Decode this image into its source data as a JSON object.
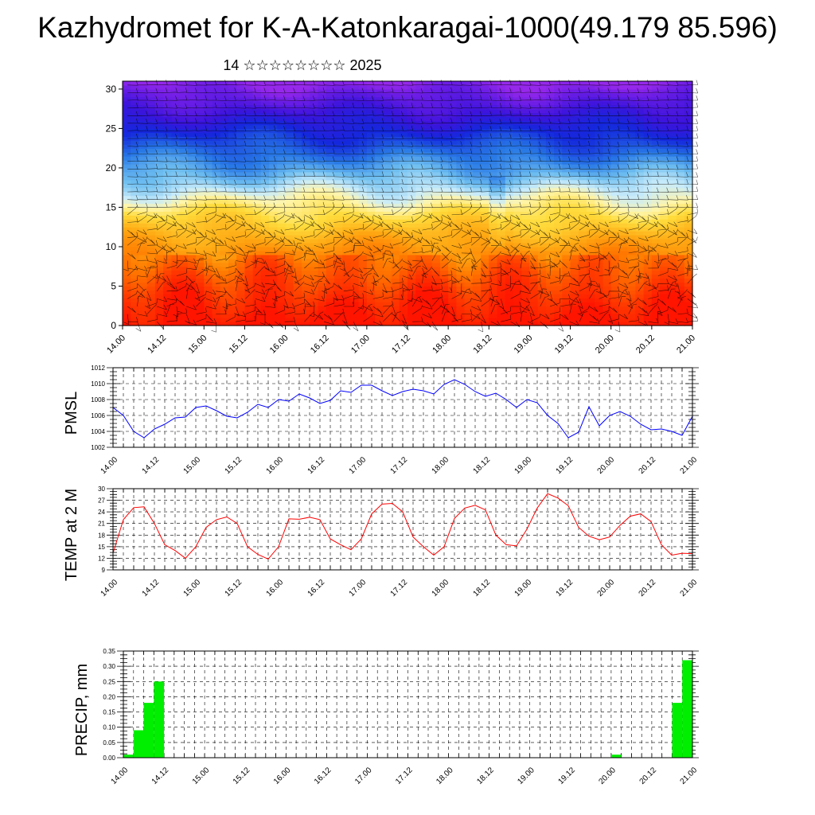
{
  "title": "Kazhydromet for K-A-Katonkaragai-1000(49.179 85.596)",
  "subtitle": "14 ☆☆☆☆☆☆☆☆ 2025",
  "x_tick_labels": [
    "14.00",
    "14.12",
    "15.00",
    "15.12",
    "16.00",
    "16.12",
    "17.00",
    "17.12",
    "18.00",
    "18.12",
    "19.00",
    "19.12",
    "20.00",
    "20.12",
    "21.00"
  ],
  "chart_data": [
    {
      "type": "heatmap",
      "title": "",
      "xlabel": "",
      "ylabel": "",
      "x_ticks": [
        "14.00",
        "14.12",
        "15.00",
        "15.12",
        "16.00",
        "16.12",
        "17.00",
        "17.12",
        "18.00",
        "18.12",
        "19.00",
        "19.12",
        "20.00",
        "20.12",
        "21.00"
      ],
      "y_ticks": [
        0,
        5,
        10,
        15,
        20,
        25,
        30
      ],
      "ylim": [
        0,
        31
      ],
      "description": "shaded temperature-like field (red near surface, yellow mid, blue aloft) with wind barbs",
      "grid": false
    },
    {
      "type": "line",
      "ylabel": "PMSL",
      "ylim": [
        1002,
        1012
      ],
      "y_ticks": [
        1002,
        1004,
        1006,
        1008,
        1010,
        1012
      ],
      "x_ticks": [
        "14.00",
        "14.12",
        "15.00",
        "15.12",
        "16.00",
        "16.12",
        "17.00",
        "17.12",
        "18.00",
        "18.12",
        "19.00",
        "19.12",
        "20.00",
        "20.12",
        "21.00"
      ],
      "grid": true,
      "color": "#0000ff",
      "step_hours": 3,
      "values": [
        1007.0,
        1006.0,
        1004.0,
        1003.2,
        1004.3,
        1004.9,
        1005.7,
        1005.8,
        1007.0,
        1007.2,
        1006.6,
        1005.9,
        1005.7,
        1006.4,
        1007.4,
        1007.0,
        1008.0,
        1007.8,
        1008.7,
        1008.2,
        1007.5,
        1007.9,
        1009.1,
        1008.9,
        1009.8,
        1009.8,
        1009.1,
        1008.5,
        1009.0,
        1009.3,
        1009.1,
        1008.7,
        1009.9,
        1010.5,
        1009.9,
        1009.0,
        1008.4,
        1008.8,
        1008.0,
        1007.0,
        1008.0,
        1007.6,
        1006.0,
        1005.0,
        1003.2,
        1003.9,
        1007.1,
        1004.7,
        1006.0,
        1006.5,
        1005.9,
        1004.9,
        1004.2,
        1004.3,
        1004.0,
        1003.5,
        1005.9
      ]
    },
    {
      "type": "line",
      "ylabel": "TEMP at 2 M",
      "ylim": [
        9,
        30
      ],
      "y_ticks": [
        9,
        12,
        15,
        18,
        21,
        24,
        27,
        30
      ],
      "x_ticks": [
        "14.00",
        "14.12",
        "15.00",
        "15.12",
        "16.00",
        "16.12",
        "17.00",
        "17.12",
        "18.00",
        "18.12",
        "19.00",
        "19.12",
        "20.00",
        "20.12",
        "21.00"
      ],
      "grid": true,
      "color": "#ff0000",
      "step_hours": 3,
      "values": [
        13.3,
        22.0,
        25.1,
        25.3,
        21.0,
        15.5,
        14.0,
        12.0,
        15.0,
        20.0,
        22.0,
        22.7,
        21.0,
        15.0,
        13.0,
        11.8,
        15.0,
        22.2,
        22.1,
        22.6,
        22.0,
        17.0,
        15.5,
        14.2,
        17.0,
        23.5,
        26.0,
        26.2,
        24.0,
        17.5,
        15.0,
        12.8,
        15.0,
        22.3,
        25.0,
        25.7,
        24.5,
        18.0,
        15.5,
        15.2,
        19.5,
        25.0,
        28.7,
        27.6,
        25.6,
        20.0,
        17.7,
        16.8,
        17.5,
        20.5,
        22.9,
        23.5,
        21.5,
        15.5,
        12.8,
        13.3,
        13.2
      ]
    },
    {
      "type": "bar",
      "ylabel": "PRECIP, mm",
      "ylim": [
        0,
        0.35
      ],
      "y_ticks": [
        "0.00",
        "0.05",
        "0.10",
        "0.15",
        "0.20",
        "0.25",
        "0.30",
        "0.35"
      ],
      "x_ticks": [
        "14.00",
        "14.12",
        "15.00",
        "15.12",
        "16.00",
        "16.12",
        "17.00",
        "17.12",
        "18.00",
        "18.12",
        "19.00",
        "19.12",
        "20.00",
        "20.12",
        "21.00"
      ],
      "grid": true,
      "color": "#00ee00",
      "step_hours": 3,
      "values": [
        0,
        0.01,
        0.09,
        0.18,
        0.25,
        0,
        0,
        0,
        0,
        0,
        0,
        0,
        0,
        0,
        0,
        0,
        0,
        0,
        0,
        0,
        0,
        0,
        0,
        0,
        0,
        0,
        0,
        0,
        0,
        0,
        0,
        0,
        0,
        0,
        0,
        0,
        0,
        0,
        0,
        0,
        0,
        0,
        0,
        0,
        0,
        0,
        0,
        0,
        0,
        0.01,
        0,
        0,
        0,
        0,
        0,
        0.18,
        0.32
      ]
    }
  ]
}
